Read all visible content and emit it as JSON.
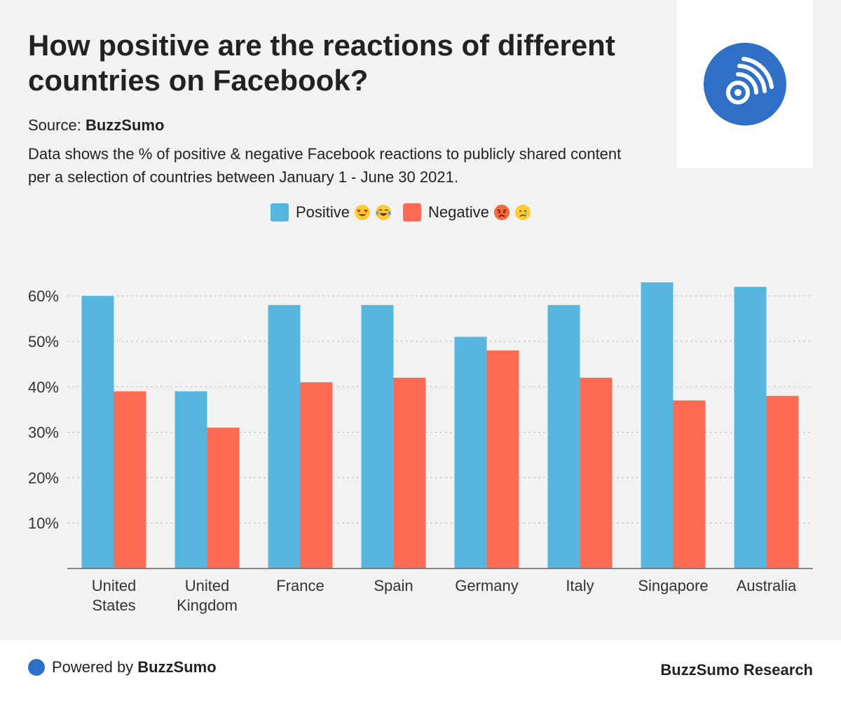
{
  "header": {
    "title": "How positive are the reactions of different countries on Facebook?",
    "source_label": "Source:",
    "source_name": "BuzzSumo",
    "description": "Data shows the % of positive & negative Facebook reactions to publicly shared content per a selection of countries between January 1 - June 30 2021."
  },
  "logo": {
    "icon": "buzzsumo-signal-icon",
    "color": "#2f6fc6"
  },
  "legend": {
    "positive_label": "Positive",
    "negative_label": "Negative",
    "positive_emojis": [
      "heart-eyes-emoji",
      "tears-of-joy-emoji"
    ],
    "negative_emojis": [
      "angry-face-emoji",
      "crying-face-emoji"
    ]
  },
  "colors": {
    "positive": "#56b6de",
    "negative": "#fe6b55",
    "brand": "#2f6fc6"
  },
  "chart_data": {
    "type": "bar",
    "categories": [
      "United States",
      "United Kingdom",
      "France",
      "Spain",
      "Germany",
      "Italy",
      "Singapore",
      "Australia"
    ],
    "category_lines": [
      [
        "United",
        "States"
      ],
      [
        "United",
        "Kingdom"
      ],
      [
        "France"
      ],
      [
        "Spain"
      ],
      [
        "Germany"
      ],
      [
        "Italy"
      ],
      [
        "Singapore"
      ],
      [
        "Australia"
      ]
    ],
    "series": [
      {
        "name": "Positive",
        "values": [
          60,
          39,
          58,
          58,
          51,
          58,
          63,
          62
        ]
      },
      {
        "name": "Negative",
        "values": [
          39,
          31,
          41,
          42,
          48,
          42,
          37,
          38
        ]
      }
    ],
    "ylim": [
      0,
      60
    ],
    "yticks": [
      10,
      20,
      30,
      40,
      50,
      60
    ],
    "ytick_labels": [
      "10%",
      "20%",
      "30%",
      "40%",
      "50%",
      "60%"
    ],
    "grid": true,
    "legend_position": "top-center"
  },
  "footer": {
    "powered_label": "Powered by",
    "powered_brand": "BuzzSumo",
    "research_label": "BuzzSumo Research"
  }
}
